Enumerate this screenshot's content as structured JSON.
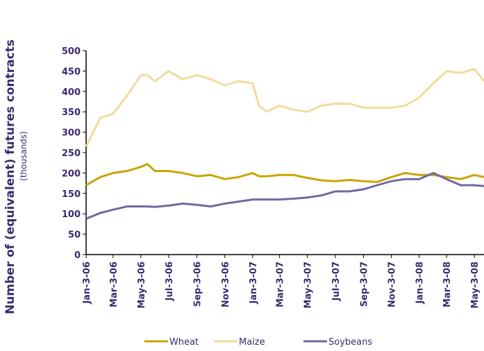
{
  "chart_data": {
    "type": "line",
    "y_label": "Number of (equivalent) futures contracts",
    "y_sublabel": "(thousands)",
    "x": [
      "2006-01-03",
      "2006-02-03",
      "2006-03-03",
      "2006-04-03",
      "2006-05-03",
      "2006-05-17",
      "2006-06-03",
      "2006-07-03",
      "2006-08-03",
      "2006-09-03",
      "2006-10-03",
      "2006-11-03",
      "2006-12-03",
      "2007-01-03",
      "2007-01-17",
      "2007-02-03",
      "2007-03-03",
      "2007-04-03",
      "2007-05-03",
      "2007-06-03",
      "2007-07-03",
      "2007-08-03",
      "2007-09-03",
      "2007-10-03",
      "2007-11-03",
      "2007-12-03",
      "2008-01-03",
      "2008-02-03",
      "2008-03-03",
      "2008-04-03",
      "2008-05-03",
      "2008-05-24"
    ],
    "series": [
      {
        "name": "Wheat",
        "color": "#c9a400",
        "values": [
          170,
          190,
          200,
          205,
          215,
          222,
          205,
          205,
          200,
          192,
          195,
          185,
          190,
          200,
          192,
          192,
          195,
          195,
          188,
          182,
          180,
          183,
          180,
          178,
          190,
          200,
          195,
          195,
          190,
          185,
          195,
          190
        ]
      },
      {
        "name": "Maize",
        "color": "#f0dc9c",
        "values": [
          265,
          335,
          345,
          390,
          440,
          440,
          425,
          450,
          430,
          440,
          430,
          415,
          425,
          420,
          365,
          350,
          365,
          355,
          350,
          365,
          370,
          370,
          360,
          360,
          360,
          365,
          385,
          420,
          450,
          445,
          455,
          425
        ]
      },
      {
        "name": "Soybeans",
        "color": "#6e6a9e",
        "values": [
          88,
          102,
          110,
          118,
          118,
          118,
          117,
          120,
          125,
          122,
          118,
          125,
          130,
          135,
          135,
          135,
          135,
          137,
          140,
          145,
          155,
          155,
          160,
          170,
          180,
          185,
          185,
          200,
          185,
          170,
          170,
          168
        ]
      }
    ],
    "xlim": [
      "2006-01-03",
      "2008-05-24"
    ],
    "xticks": [
      {
        "value": "2006-01-03",
        "label": "Jan-3-06"
      },
      {
        "value": "2006-03-03",
        "label": "Mar-3-06"
      },
      {
        "value": "2006-05-03",
        "label": "May-3-06"
      },
      {
        "value": "2006-07-03",
        "label": "Jul-3-06"
      },
      {
        "value": "2006-09-03",
        "label": "Sep-3-06"
      },
      {
        "value": "2006-11-03",
        "label": "Nov-3-06"
      },
      {
        "value": "2007-01-03",
        "label": "Jan-3-07"
      },
      {
        "value": "2007-03-03",
        "label": "Mar-3-07"
      },
      {
        "value": "2007-05-03",
        "label": "May-3-07"
      },
      {
        "value": "2007-07-03",
        "label": "Jul-3-07"
      },
      {
        "value": "2007-09-03",
        "label": "Sep-3-07"
      },
      {
        "value": "2007-11-03",
        "label": "Nov-3-07"
      },
      {
        "value": "2008-01-03",
        "label": "Jan-3-08"
      },
      {
        "value": "2008-03-03",
        "label": "Mar-3-08"
      },
      {
        "value": "2008-05-03",
        "label": "May-3-08"
      }
    ],
    "ylim": [
      0,
      500
    ],
    "yticks": [
      0,
      50,
      100,
      150,
      200,
      250,
      300,
      350,
      400,
      450,
      500
    ],
    "legend": "bottom"
  }
}
